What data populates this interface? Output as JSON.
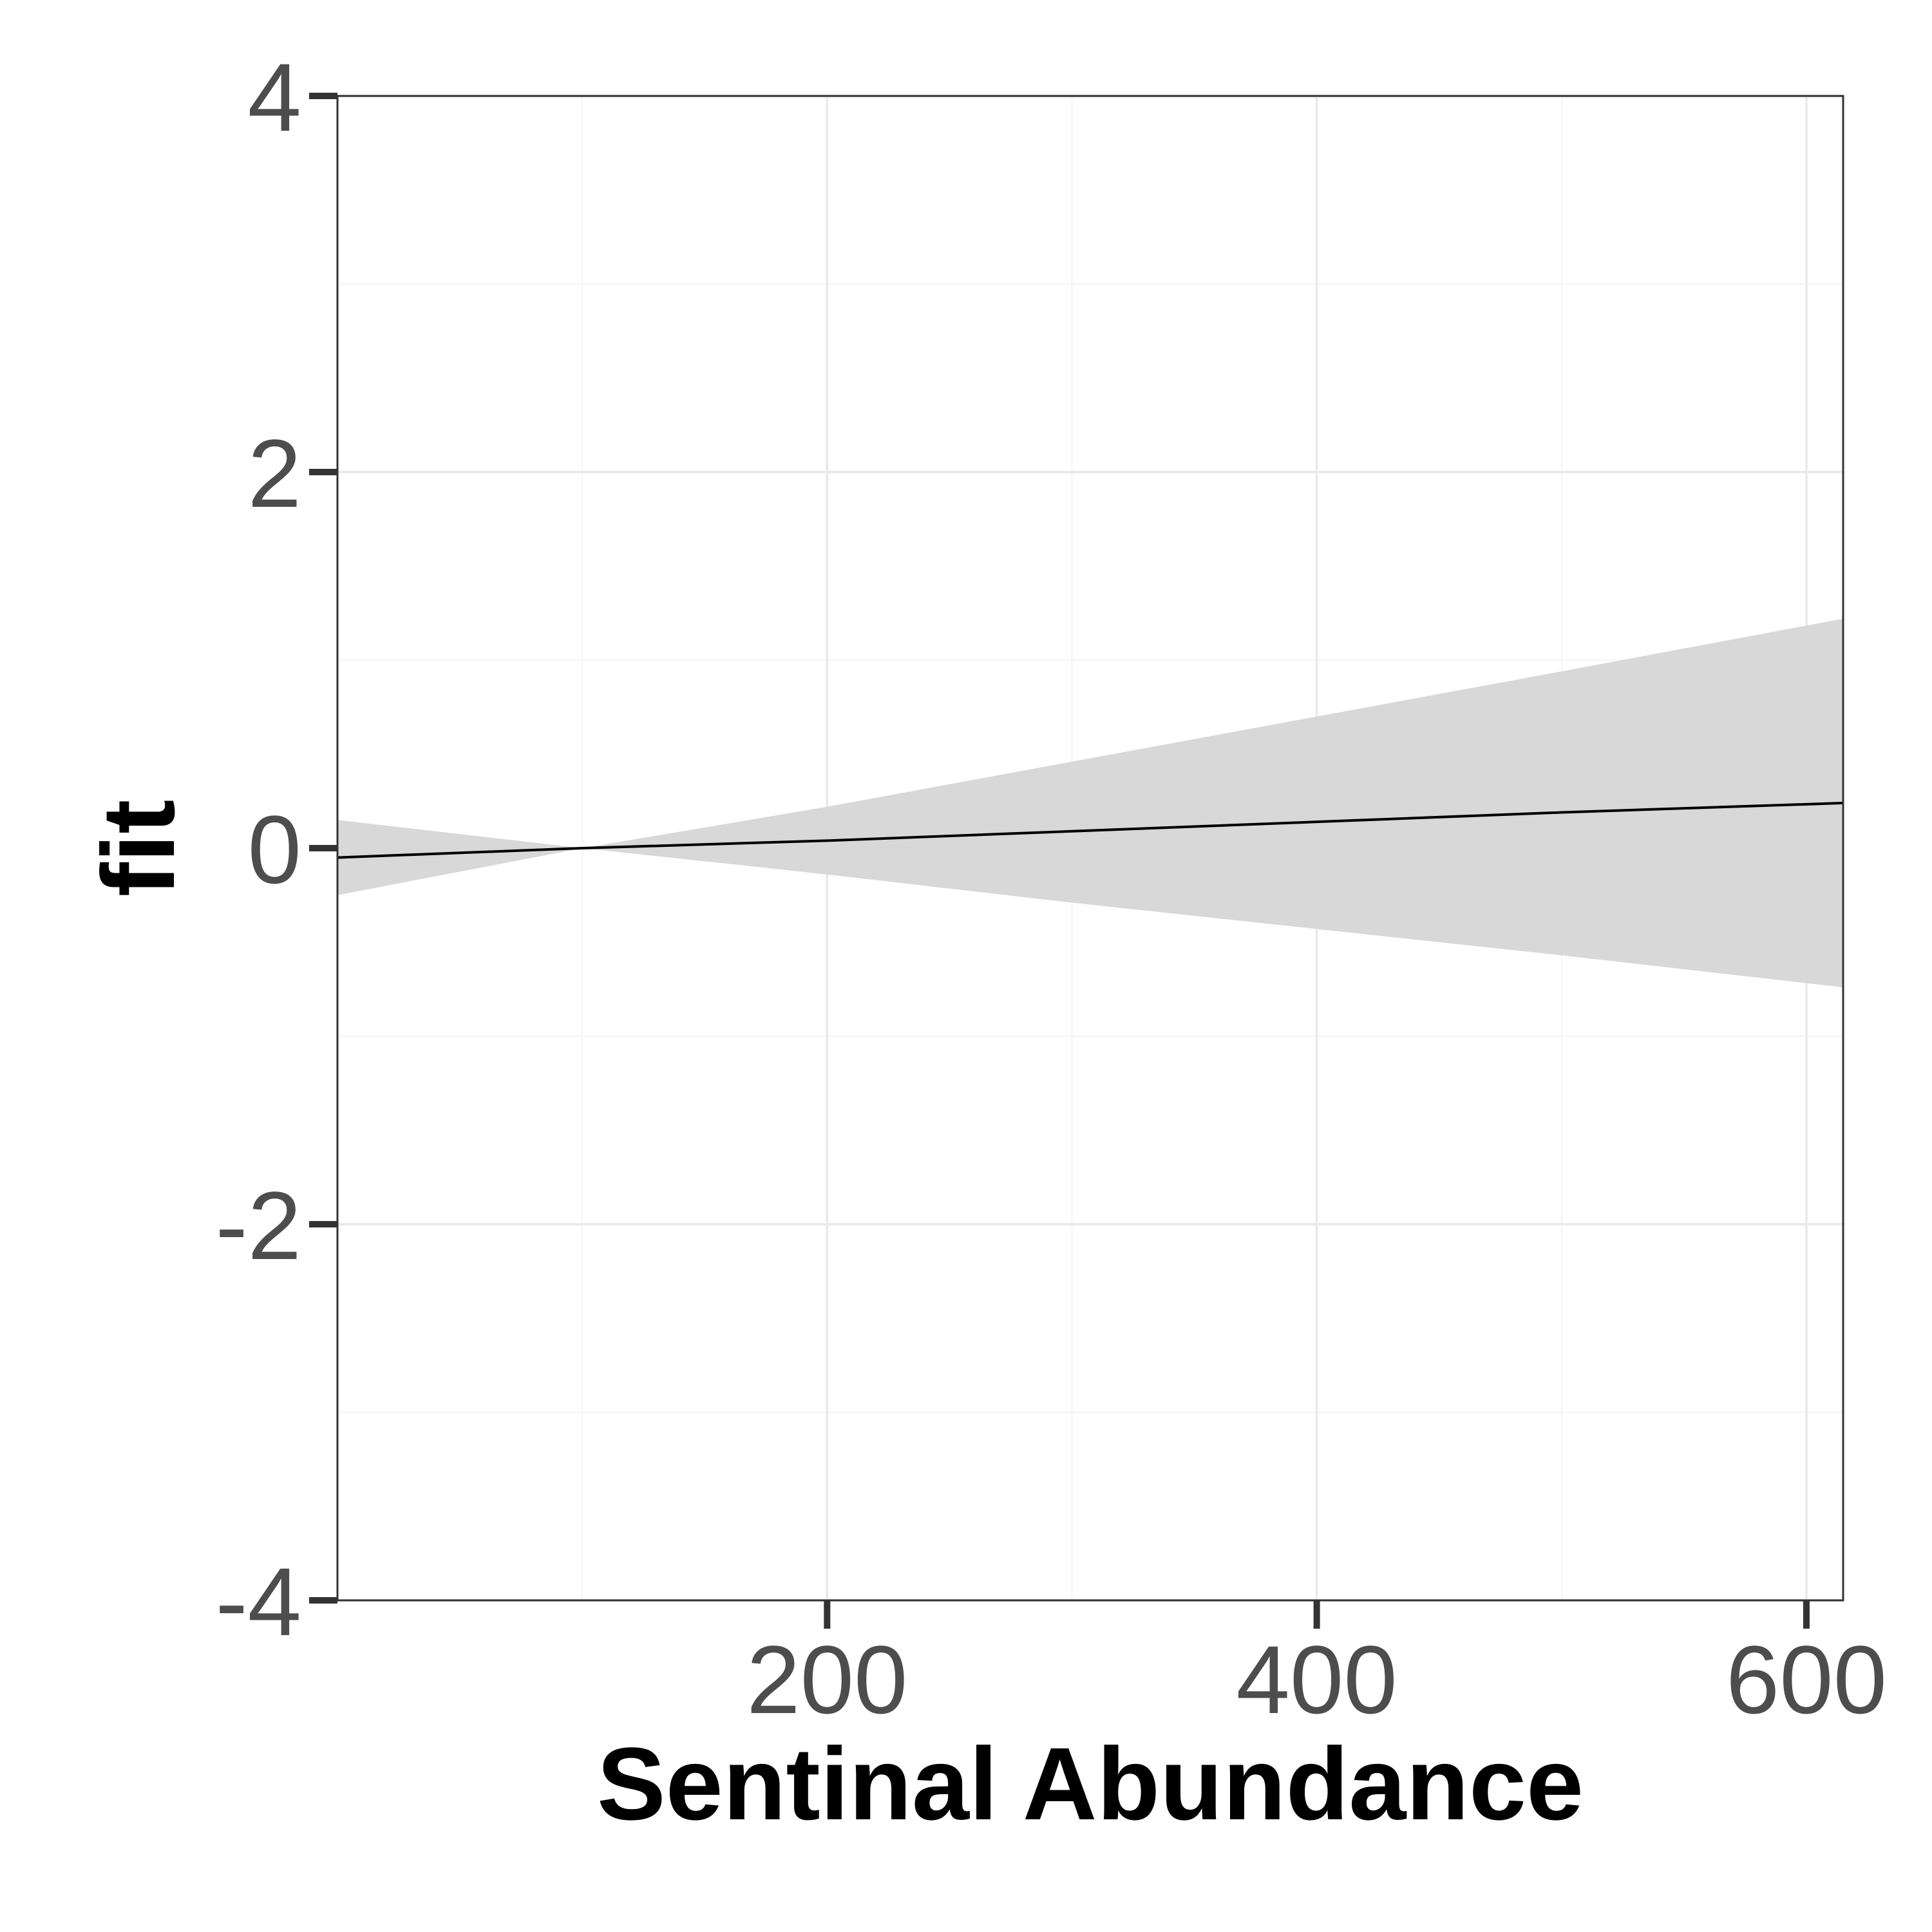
{
  "chart_data": {
    "type": "line",
    "title": "",
    "xlabel": "Sentinal Abundance",
    "ylabel": "fit",
    "xlim": [
      0,
      615
    ],
    "ylim": [
      -4,
      4
    ],
    "x_ticks": [
      200,
      400,
      600
    ],
    "x_tick_labels": [
      "200",
      "400",
      "600"
    ],
    "x_minor_ticks": [
      100,
      300,
      500
    ],
    "y_ticks": [
      -4,
      -2,
      0,
      2,
      4
    ],
    "y_tick_labels": [
      "-4",
      "-2",
      "0",
      "2",
      "4"
    ],
    "y_minor_ticks": [
      -3,
      -1,
      1,
      3
    ],
    "grid": true,
    "legend": "none",
    "series": [
      {
        "x": [
          0,
          100,
          200,
          300,
          400,
          500,
          615
        ],
        "y": [
          -0.05,
          0.0,
          0.04,
          0.09,
          0.14,
          0.19,
          0.24
        ]
      }
    ],
    "confidence_band": {
      "x": [
        0,
        100,
        200,
        300,
        400,
        500,
        615
      ],
      "upper": [
        0.15,
        0.0,
        0.22,
        0.46,
        0.7,
        0.94,
        1.22
      ],
      "lower": [
        -0.25,
        0.0,
        -0.14,
        -0.29,
        -0.43,
        -0.57,
        -0.74
      ]
    },
    "colors": {
      "line": "#000000",
      "band": "#d6d6d6",
      "grid_major": "#ebebeb",
      "grid_minor": "#f4f4f4",
      "panel_border": "#333333",
      "tick_label": "#4d4d4d"
    }
  }
}
